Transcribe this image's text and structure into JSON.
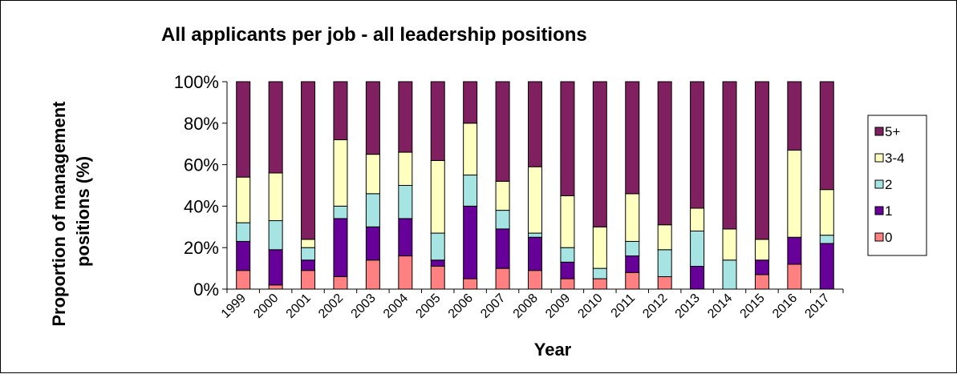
{
  "chart_data": {
    "type": "bar",
    "stacked": true,
    "title": "All applicants per job - all leadership positions",
    "xlabel": "Year",
    "ylabel": "Proportion of management positions (%)",
    "ylim": [
      0,
      100
    ],
    "yticks": [
      "0%",
      "20%",
      "40%",
      "60%",
      "80%",
      "100%"
    ],
    "categories": [
      "1999",
      "2000",
      "2001",
      "2002",
      "2003",
      "2004",
      "2005",
      "2006",
      "2007",
      "2008",
      "2009",
      "2010",
      "2011",
      "2012",
      "2013",
      "2014",
      "2015",
      "2016",
      "2017"
    ],
    "series": [
      {
        "name": "0",
        "color": "#ff8080",
        "values": [
          9,
          2,
          9,
          6,
          14,
          16,
          11,
          5,
          10,
          9,
          5,
          5,
          8,
          6,
          0,
          0,
          7,
          12,
          0
        ]
      },
      {
        "name": "1",
        "color": "#660099",
        "values": [
          14,
          17,
          5,
          28,
          16,
          18,
          3,
          35,
          19,
          16,
          8,
          0,
          8,
          0,
          11,
          0,
          7,
          13,
          22
        ]
      },
      {
        "name": "2",
        "color": "#a6e3e3",
        "values": [
          9,
          14,
          6,
          6,
          16,
          16,
          13,
          15,
          9,
          2,
          7,
          5,
          7,
          13,
          17,
          14,
          0,
          0,
          4
        ]
      },
      {
        "name": "3-4",
        "color": "#ffffc0",
        "values": [
          22,
          23,
          4,
          32,
          19,
          16,
          35,
          25,
          14,
          32,
          25,
          20,
          23,
          12,
          11,
          15,
          10,
          42,
          22
        ]
      },
      {
        "name": "5+",
        "color": "#802060",
        "values": [
          46,
          44,
          76,
          28,
          35,
          34,
          38,
          20,
          48,
          41,
          55,
          70,
          54,
          69,
          61,
          71,
          76,
          33,
          52
        ]
      }
    ],
    "legend_position": "right"
  }
}
